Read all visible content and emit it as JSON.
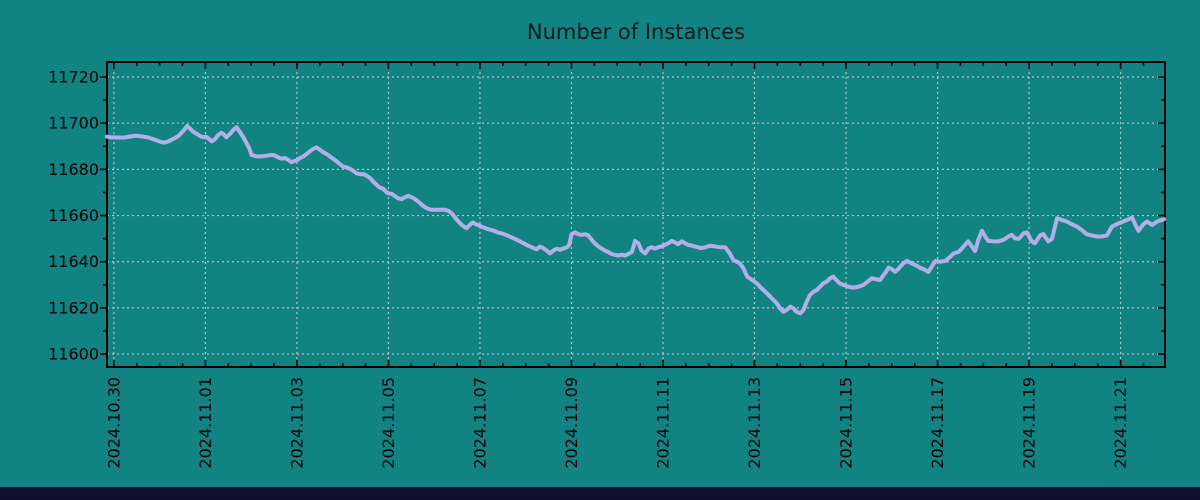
{
  "colors": {
    "background": "#128383",
    "line": "#b4aee8",
    "grid": "#c8c8c8",
    "axis": "#000000",
    "bottom_bar": "#0e0e2e"
  },
  "chart_data": {
    "type": "line",
    "title": "Number of Instances",
    "grid": true,
    "legend_position": "none",
    "x_axis": {
      "tick_labels": [
        "2024.10.30",
        "2024.11.01",
        "2024.11.03",
        "2024.11.05",
        "2024.11.07",
        "2024.11.09",
        "2024.11.11",
        "2024.11.13",
        "2024.11.15",
        "2024.11.17",
        "2024.11.19",
        "2024.11.21"
      ],
      "tick_days": [
        0,
        2,
        4,
        6,
        8,
        10,
        12,
        14,
        16,
        18,
        20,
        22
      ],
      "minor_step_days": 0.5,
      "xlim_days": [
        -0.15,
        22.97
      ]
    },
    "y_axis": {
      "ticks": [
        11600,
        11620,
        11640,
        11660,
        11680,
        11700,
        11720
      ],
      "minor_step": 10,
      "ylim": [
        11594.4,
        11726.5
      ]
    },
    "series": [
      {
        "name": "instances",
        "color": "#b4aee8",
        "points": [
          [
            -0.15,
            11694.2
          ],
          [
            -0.09,
            11693.9
          ],
          [
            0.02,
            11693.8
          ],
          [
            0.13,
            11693.8
          ],
          [
            0.24,
            11693.8
          ],
          [
            0.35,
            11694.2
          ],
          [
            0.46,
            11694.6
          ],
          [
            0.53,
            11694.5
          ],
          [
            0.64,
            11694.2
          ],
          [
            0.75,
            11693.8
          ],
          [
            0.86,
            11693.1
          ],
          [
            0.97,
            11692.3
          ],
          [
            1.04,
            11691.8
          ],
          [
            1.11,
            11691.6
          ],
          [
            1.19,
            11692.1
          ],
          [
            1.26,
            11692.8
          ],
          [
            1.33,
            11693.5
          ],
          [
            1.41,
            11694.5
          ],
          [
            1.48,
            11695.9
          ],
          [
            1.55,
            11697.4
          ],
          [
            1.6,
            11698.8
          ],
          [
            1.66,
            11697.8
          ],
          [
            1.73,
            11696.4
          ],
          [
            1.81,
            11695.4
          ],
          [
            1.88,
            11694.5
          ],
          [
            1.95,
            11693.9
          ],
          [
            2.01,
            11694.2
          ],
          [
            2.06,
            11693.5
          ],
          [
            2.14,
            11692.1
          ],
          [
            2.21,
            11693.1
          ],
          [
            2.28,
            11694.9
          ],
          [
            2.35,
            11695.9
          ],
          [
            2.39,
            11695.4
          ],
          [
            2.46,
            11693.9
          ],
          [
            2.54,
            11695.4
          ],
          [
            2.61,
            11697.1
          ],
          [
            2.68,
            11698.2
          ],
          [
            2.75,
            11696.4
          ],
          [
            2.83,
            11693.9
          ],
          [
            2.9,
            11691.3
          ],
          [
            2.96,
            11689.1
          ],
          [
            3.01,
            11686.2
          ],
          [
            3.12,
            11685.6
          ],
          [
            3.23,
            11685.6
          ],
          [
            3.34,
            11685.9
          ],
          [
            3.45,
            11686.3
          ],
          [
            3.52,
            11686.0
          ],
          [
            3.59,
            11685.2
          ],
          [
            3.67,
            11684.6
          ],
          [
            3.74,
            11684.9
          ],
          [
            3.81,
            11684.1
          ],
          [
            3.88,
            11683.1
          ],
          [
            3.96,
            11683.7
          ],
          [
            4.01,
            11684.1
          ],
          [
            4.07,
            11684.9
          ],
          [
            4.14,
            11685.6
          ],
          [
            4.21,
            11686.6
          ],
          [
            4.28,
            11687.8
          ],
          [
            4.36,
            11688.9
          ],
          [
            4.43,
            11689.5
          ],
          [
            4.5,
            11688.5
          ],
          [
            4.57,
            11687.5
          ],
          [
            4.65,
            11686.6
          ],
          [
            4.72,
            11685.6
          ],
          [
            4.79,
            11684.6
          ],
          [
            4.87,
            11683.4
          ],
          [
            4.94,
            11682.3
          ],
          [
            5.01,
            11681.2
          ],
          [
            5.09,
            11680.8
          ],
          [
            5.16,
            11680.2
          ],
          [
            5.23,
            11679.4
          ],
          [
            5.3,
            11678.3
          ],
          [
            5.38,
            11677.9
          ],
          [
            5.45,
            11677.9
          ],
          [
            5.52,
            11677.3
          ],
          [
            5.6,
            11676.2
          ],
          [
            5.67,
            11674.7
          ],
          [
            5.74,
            11673.3
          ],
          [
            5.81,
            11672.1
          ],
          [
            5.89,
            11671.6
          ],
          [
            5.95,
            11670.3
          ],
          [
            6.0,
            11669.6
          ],
          [
            6.07,
            11669.4
          ],
          [
            6.14,
            11668.5
          ],
          [
            6.21,
            11667.5
          ],
          [
            6.29,
            11667.1
          ],
          [
            6.36,
            11667.9
          ],
          [
            6.43,
            11668.5
          ],
          [
            6.51,
            11667.9
          ],
          [
            6.58,
            11667.1
          ],
          [
            6.65,
            11666.1
          ],
          [
            6.73,
            11664.7
          ],
          [
            6.8,
            11663.6
          ],
          [
            6.87,
            11662.9
          ],
          [
            6.94,
            11662.5
          ],
          [
            7.02,
            11662.5
          ],
          [
            7.13,
            11662.5
          ],
          [
            7.24,
            11662.5
          ],
          [
            7.31,
            11662.0
          ],
          [
            7.38,
            11661.0
          ],
          [
            7.45,
            11659.3
          ],
          [
            7.53,
            11657.4
          ],
          [
            7.6,
            11656.0
          ],
          [
            7.67,
            11654.9
          ],
          [
            7.71,
            11654.5
          ],
          [
            7.74,
            11655.2
          ],
          [
            7.82,
            11656.7
          ],
          [
            7.85,
            11657.0
          ],
          [
            7.89,
            11656.4
          ],
          [
            7.99,
            11655.6
          ],
          [
            8.07,
            11654.9
          ],
          [
            8.18,
            11654.1
          ],
          [
            8.29,
            11653.5
          ],
          [
            8.4,
            11652.6
          ],
          [
            8.51,
            11652.1
          ],
          [
            8.62,
            11651.2
          ],
          [
            8.73,
            11650.2
          ],
          [
            8.84,
            11649.2
          ],
          [
            8.95,
            11648.0
          ],
          [
            9.06,
            11646.9
          ],
          [
            9.17,
            11645.9
          ],
          [
            9.24,
            11645.4
          ],
          [
            9.31,
            11646.6
          ],
          [
            9.38,
            11645.9
          ],
          [
            9.46,
            11644.8
          ],
          [
            9.53,
            11643.6
          ],
          [
            9.6,
            11644.8
          ],
          [
            9.68,
            11645.7
          ],
          [
            9.75,
            11645.2
          ],
          [
            9.82,
            11645.7
          ],
          [
            9.9,
            11646.3
          ],
          [
            9.95,
            11647.3
          ],
          [
            10.0,
            11651.9
          ],
          [
            10.08,
            11652.7
          ],
          [
            10.15,
            11651.9
          ],
          [
            10.22,
            11651.6
          ],
          [
            10.3,
            11651.9
          ],
          [
            10.37,
            11651.4
          ],
          [
            10.44,
            11649.5
          ],
          [
            10.51,
            11648.0
          ],
          [
            10.59,
            11646.6
          ],
          [
            10.66,
            11645.7
          ],
          [
            10.73,
            11644.8
          ],
          [
            10.8,
            11644.2
          ],
          [
            10.88,
            11643.3
          ],
          [
            10.95,
            11643.0
          ],
          [
            11.02,
            11642.7
          ],
          [
            11.1,
            11643.0
          ],
          [
            11.17,
            11642.7
          ],
          [
            11.24,
            11643.3
          ],
          [
            11.32,
            11644.2
          ],
          [
            11.39,
            11649.0
          ],
          [
            11.46,
            11648.0
          ],
          [
            11.53,
            11644.8
          ],
          [
            11.61,
            11643.6
          ],
          [
            11.68,
            11645.7
          ],
          [
            11.75,
            11646.3
          ],
          [
            11.82,
            11645.7
          ],
          [
            11.9,
            11646.3
          ],
          [
            11.96,
            11646.6
          ],
          [
            12.04,
            11647.3
          ],
          [
            12.12,
            11648.0
          ],
          [
            12.19,
            11649.0
          ],
          [
            12.26,
            11648.4
          ],
          [
            12.33,
            11647.6
          ],
          [
            12.41,
            11648.8
          ],
          [
            12.48,
            11648.0
          ],
          [
            12.55,
            11647.3
          ],
          [
            12.63,
            11647.0
          ],
          [
            12.7,
            11646.6
          ],
          [
            12.77,
            11646.3
          ],
          [
            12.81,
            11645.9
          ],
          [
            12.92,
            11646.2
          ],
          [
            13.03,
            11647.0
          ],
          [
            13.14,
            11646.6
          ],
          [
            13.25,
            11646.3
          ],
          [
            13.36,
            11646.3
          ],
          [
            13.46,
            11643.6
          ],
          [
            13.54,
            11640.7
          ],
          [
            13.61,
            11640.0
          ],
          [
            13.68,
            11639.3
          ],
          [
            13.76,
            11637.1
          ],
          [
            13.84,
            11633.5
          ],
          [
            13.95,
            11632.1
          ],
          [
            14.05,
            11630.6
          ],
          [
            14.16,
            11628.4
          ],
          [
            14.27,
            11626.3
          ],
          [
            14.38,
            11624.1
          ],
          [
            14.49,
            11621.9
          ],
          [
            14.56,
            11619.8
          ],
          [
            14.63,
            11618.3
          ],
          [
            14.7,
            11619.1
          ],
          [
            14.78,
            11620.5
          ],
          [
            14.85,
            11619.8
          ],
          [
            14.92,
            11618.3
          ],
          [
            15.0,
            11617.6
          ],
          [
            15.07,
            11619.1
          ],
          [
            15.14,
            11622.7
          ],
          [
            15.21,
            11625.6
          ],
          [
            15.29,
            11627.0
          ],
          [
            15.36,
            11627.7
          ],
          [
            15.43,
            11629.2
          ],
          [
            15.5,
            11630.6
          ],
          [
            15.58,
            11631.4
          ],
          [
            15.65,
            11632.8
          ],
          [
            15.72,
            11633.5
          ],
          [
            15.79,
            11632.1
          ],
          [
            15.86,
            11630.6
          ],
          [
            15.95,
            11629.9
          ],
          [
            16.05,
            11629.2
          ],
          [
            16.16,
            11628.8
          ],
          [
            16.27,
            11629.2
          ],
          [
            16.38,
            11629.9
          ],
          [
            16.49,
            11631.7
          ],
          [
            16.56,
            11632.8
          ],
          [
            16.63,
            11632.5
          ],
          [
            16.74,
            11632.1
          ],
          [
            16.85,
            11635.0
          ],
          [
            16.93,
            11637.4
          ],
          [
            17.0,
            11636.8
          ],
          [
            17.07,
            11635.6
          ],
          [
            17.14,
            11636.8
          ],
          [
            17.25,
            11639.3
          ],
          [
            17.33,
            11640.3
          ],
          [
            17.4,
            11639.7
          ],
          [
            17.51,
            11638.6
          ],
          [
            17.62,
            11637.4
          ],
          [
            17.73,
            11636.4
          ],
          [
            17.8,
            11635.6
          ],
          [
            17.87,
            11637.8
          ],
          [
            17.95,
            11640.3
          ],
          [
            18.06,
            11640.0
          ],
          [
            18.17,
            11640.3
          ],
          [
            18.28,
            11642.2
          ],
          [
            18.35,
            11643.6
          ],
          [
            18.46,
            11644.3
          ],
          [
            18.53,
            11645.7
          ],
          [
            18.6,
            11647.3
          ],
          [
            18.67,
            11648.8
          ],
          [
            18.75,
            11646.6
          ],
          [
            18.82,
            11644.6
          ],
          [
            18.89,
            11649.5
          ],
          [
            18.97,
            11653.4
          ],
          [
            19.04,
            11650.9
          ],
          [
            19.11,
            11649.0
          ],
          [
            19.22,
            11648.8
          ],
          [
            19.33,
            11648.8
          ],
          [
            19.44,
            11649.5
          ],
          [
            19.55,
            11650.9
          ],
          [
            19.62,
            11651.6
          ],
          [
            19.69,
            11650.2
          ],
          [
            19.77,
            11649.9
          ],
          [
            19.88,
            11652.3
          ],
          [
            19.95,
            11652.7
          ],
          [
            20.06,
            11648.8
          ],
          [
            20.13,
            11648.0
          ],
          [
            20.24,
            11651.4
          ],
          [
            20.31,
            11652.0
          ],
          [
            20.42,
            11648.8
          ],
          [
            20.5,
            11649.9
          ],
          [
            20.61,
            11658.8
          ],
          [
            20.71,
            11658.1
          ],
          [
            20.82,
            11657.4
          ],
          [
            20.93,
            11656.3
          ],
          [
            21.04,
            11655.2
          ],
          [
            21.15,
            11653.8
          ],
          [
            21.26,
            11651.9
          ],
          [
            21.37,
            11651.4
          ],
          [
            21.48,
            11650.9
          ],
          [
            21.59,
            11650.9
          ],
          [
            21.7,
            11651.4
          ],
          [
            21.81,
            11655.2
          ],
          [
            21.92,
            11656.3
          ],
          [
            22.03,
            11657.2
          ],
          [
            22.14,
            11658.1
          ],
          [
            22.25,
            11659.1
          ],
          [
            22.36,
            11654.5
          ],
          [
            22.39,
            11653.4
          ],
          [
            22.5,
            11656.3
          ],
          [
            22.58,
            11657.4
          ],
          [
            22.69,
            11655.9
          ],
          [
            22.8,
            11657.4
          ],
          [
            22.9,
            11658.1
          ],
          [
            22.95,
            11658.4
          ]
        ]
      }
    ]
  }
}
